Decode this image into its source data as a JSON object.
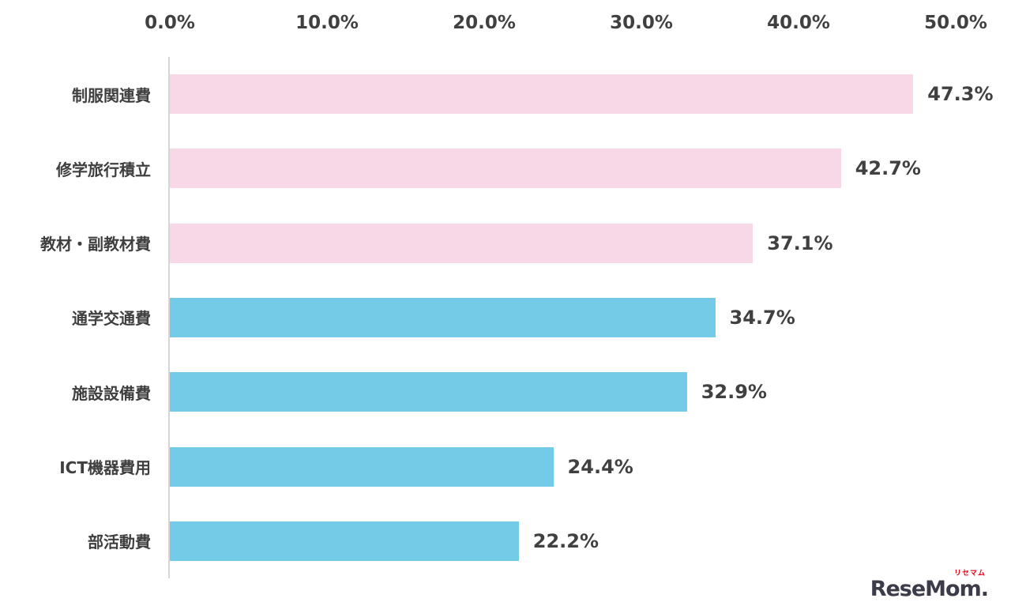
{
  "chart_data": {
    "type": "bar",
    "orientation": "horizontal",
    "title": "",
    "xlabel": "",
    "ylabel": "",
    "xlim": [
      0,
      50
    ],
    "grid": false,
    "x_ticks": [
      "0.0%",
      "10.0%",
      "20.0%",
      "30.0%",
      "40.0%",
      "50.0%"
    ],
    "x_tick_values": [
      0,
      10,
      20,
      30,
      40,
      50
    ],
    "categories": [
      "制服関連費",
      "修学旅行積立",
      "教材・副教材費",
      "通学交通費",
      "施設設備費",
      "ICT機器費用",
      "部活動費"
    ],
    "values": [
      47.3,
      42.7,
      37.1,
      34.7,
      32.9,
      24.4,
      22.2
    ],
    "value_labels": [
      "47.3%",
      "42.7%",
      "37.1%",
      "34.7%",
      "32.9%",
      "24.4%",
      "22.2%"
    ],
    "bar_colors": [
      "#f8d8e6",
      "#f8d8e6",
      "#f8d8e6",
      "#73cbe8",
      "#73cbe8",
      "#73cbe8",
      "#73cbe8"
    ]
  },
  "colors": {
    "pink": "#f8d8e6",
    "blue": "#73cbe8",
    "text": "#404040",
    "axis_line": "#d6d6d6",
    "logo_red": "#e60012",
    "logo_dark": "#3b3b49"
  },
  "watermark": {
    "ruby": "リセマム",
    "text": "ReseMom",
    "dot": "."
  }
}
